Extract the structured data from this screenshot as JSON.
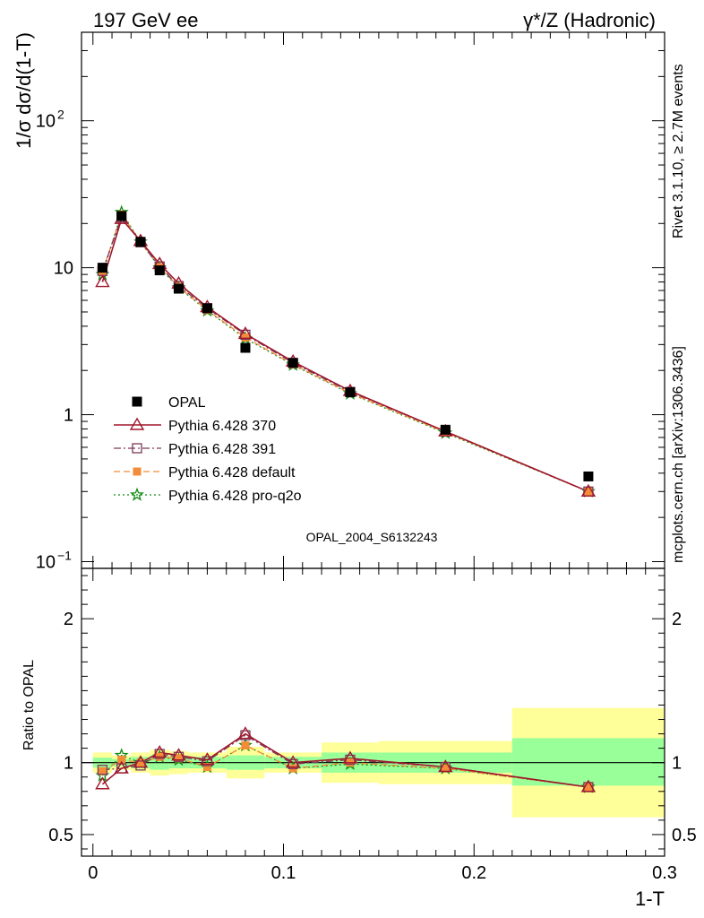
{
  "header": {
    "left": "197 GeV ee",
    "right": "γ*/Z (Hadronic)"
  },
  "side_texts": {
    "rivet": "Rivet 3.1.10, ≥ 2.7M events",
    "mcplots": "mcplots.cern.ch [arXiv:1306.3436]"
  },
  "watermark": "OPAL_2004_S6132243",
  "chart_data": [
    {
      "type": "line",
      "panel": "main",
      "ylabel": "1/σ dσ/d(1-T)",
      "yscale": "log",
      "ylim": [
        0.09,
        400
      ],
      "xlim": [
        -0.006,
        0.3
      ],
      "y_ticks": [
        {
          "value": 0.1,
          "label": "10",
          "sup": "−1"
        },
        {
          "value": 1,
          "label": "1",
          "sup": ""
        },
        {
          "value": 10,
          "label": "10",
          "sup": ""
        },
        {
          "value": 100,
          "label": "10",
          "sup": "2"
        }
      ],
      "x": [
        0.005,
        0.015,
        0.025,
        0.035,
        0.045,
        0.06,
        0.08,
        0.105,
        0.135,
        0.185,
        0.26
      ],
      "series": [
        {
          "name": "OPAL",
          "color": "#000000",
          "marker": "square-filled",
          "line": "none",
          "values": [
            10.0,
            22.5,
            15.0,
            9.6,
            7.2,
            5.3,
            2.85,
            2.25,
            1.42,
            0.79,
            0.38
          ]
        },
        {
          "name": "Pythia 6.428 370",
          "color": "#a0162c",
          "marker": "triangle-open",
          "line": "solid",
          "values": [
            8.0,
            21.5,
            15.2,
            10.6,
            7.8,
            5.4,
            3.55,
            2.3,
            1.45,
            0.77,
            0.3
          ]
        },
        {
          "name": "Pythia 6.428 391",
          "color": "#7a3b5a",
          "marker": "square-open",
          "line": "dashdot",
          "values": [
            9.5,
            22.0,
            14.9,
            10.2,
            7.5,
            5.3,
            3.5,
            2.25,
            1.43,
            0.77,
            0.3
          ]
        },
        {
          "name": "Pythia 6.428 default",
          "color": "#f28c38",
          "marker": "square-filled-small",
          "line": "dashed",
          "values": [
            9.4,
            23.0,
            15.0,
            10.1,
            7.4,
            5.15,
            3.35,
            2.2,
            1.4,
            0.76,
            0.3
          ]
        },
        {
          "name": "Pythia 6.428 pro-q2o",
          "color": "#138c13",
          "marker": "star",
          "line": "dotted",
          "values": [
            9.0,
            23.8,
            15.0,
            10.0,
            7.3,
            5.1,
            3.3,
            2.18,
            1.39,
            0.75,
            0.3
          ]
        }
      ],
      "legend_placement": "middle-left"
    },
    {
      "type": "line",
      "panel": "ratio",
      "ylabel": "Ratio to OPAL",
      "xlabel": "1-T",
      "ylim": [
        0.35,
        2.35
      ],
      "xlim": [
        -0.006,
        0.3
      ],
      "y_ticks": [
        {
          "value": 0.5,
          "label": "0.5"
        },
        {
          "value": 1,
          "label": "1"
        },
        {
          "value": 2,
          "label": "2"
        }
      ],
      "x_ticks": [
        {
          "value": 0,
          "label": "0"
        },
        {
          "value": 0.1,
          "label": "0.1"
        },
        {
          "value": 0.2,
          "label": "0.2"
        },
        {
          "value": 0.3,
          "label": "0.3"
        }
      ],
      "bands": [
        {
          "x0": 0.0,
          "x1": 0.01,
          "stat_lo": 0.965,
          "stat_hi": 1.035,
          "tot_lo": 0.93,
          "tot_hi": 1.07
        },
        {
          "x0": 0.01,
          "x1": 0.02,
          "stat_lo": 0.975,
          "stat_hi": 1.025,
          "tot_lo": 0.95,
          "tot_hi": 1.05
        },
        {
          "x0": 0.02,
          "x1": 0.03,
          "stat_lo": 0.96,
          "stat_hi": 1.04,
          "tot_lo": 0.93,
          "tot_hi": 1.07
        },
        {
          "x0": 0.03,
          "x1": 0.04,
          "stat_lo": 0.95,
          "stat_hi": 1.05,
          "tot_lo": 0.91,
          "tot_hi": 1.09
        },
        {
          "x0": 0.04,
          "x1": 0.05,
          "stat_lo": 0.96,
          "stat_hi": 1.04,
          "tot_lo": 0.92,
          "tot_hi": 1.08
        },
        {
          "x0": 0.05,
          "x1": 0.07,
          "stat_lo": 0.96,
          "stat_hi": 1.04,
          "tot_lo": 0.93,
          "tot_hi": 1.07
        },
        {
          "x0": 0.07,
          "x1": 0.09,
          "stat_lo": 0.95,
          "stat_hi": 1.05,
          "tot_lo": 0.89,
          "tot_hi": 1.11
        },
        {
          "x0": 0.09,
          "x1": 0.12,
          "stat_lo": 0.96,
          "stat_hi": 1.04,
          "tot_lo": 0.93,
          "tot_hi": 1.07
        },
        {
          "x0": 0.12,
          "x1": 0.15,
          "stat_lo": 0.93,
          "stat_hi": 1.07,
          "tot_lo": 0.86,
          "tot_hi": 1.14
        },
        {
          "x0": 0.15,
          "x1": 0.22,
          "stat_lo": 0.93,
          "stat_hi": 1.07,
          "tot_lo": 0.85,
          "tot_hi": 1.15
        },
        {
          "x0": 0.22,
          "x1": 0.3,
          "stat_lo": 0.84,
          "stat_hi": 1.17,
          "tot_lo": 0.62,
          "tot_hi": 1.38
        }
      ],
      "x": [
        0.005,
        0.015,
        0.025,
        0.035,
        0.045,
        0.06,
        0.08,
        0.105,
        0.135,
        0.185,
        0.26
      ],
      "series": [
        {
          "name": "Pythia 6.428 370",
          "color": "#a0162c",
          "marker": "triangle-open",
          "line": "solid",
          "values": [
            0.85,
            0.96,
            1.0,
            1.07,
            1.05,
            1.02,
            1.2,
            1.0,
            1.03,
            0.97,
            0.83
          ]
        },
        {
          "name": "Pythia 6.428 391",
          "color": "#7a3b5a",
          "marker": "square-open",
          "line": "dashdot",
          "values": [
            0.95,
            0.96,
            0.98,
            1.06,
            1.04,
            1.01,
            1.19,
            0.99,
            1.02,
            0.97,
            0.83
          ]
        },
        {
          "name": "Pythia 6.428 default",
          "color": "#f28c38",
          "marker": "square-filled-small",
          "line": "dashed",
          "values": [
            0.94,
            1.02,
            1.0,
            1.04,
            1.03,
            0.97,
            1.12,
            0.96,
            1.0,
            0.96,
            0.83
          ]
        },
        {
          "name": "Pythia 6.428 pro-q2o",
          "color": "#138c13",
          "marker": "star",
          "line": "dotted",
          "values": [
            0.91,
            1.05,
            1.0,
            1.04,
            1.02,
            0.97,
            1.12,
            0.96,
            0.99,
            0.96,
            0.83
          ]
        }
      ]
    }
  ],
  "colors": {
    "stat_band": "#99ff99",
    "total_band": "#ffff99",
    "frame": "#000000",
    "side_text": "#888888"
  }
}
